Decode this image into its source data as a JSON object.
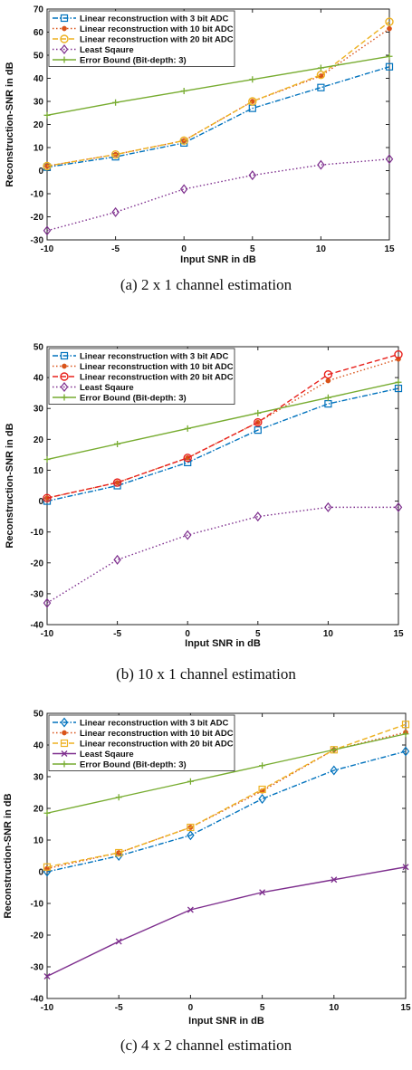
{
  "chart_data": [
    {
      "type": "line",
      "caption": "(a) 2 x 1 channel estimation",
      "xlabel": "Input SNR in dB",
      "ylabel": "Reconstruction-SNR in dB",
      "xlim": [
        -10,
        15
      ],
      "ylim": [
        -30,
        70
      ],
      "xticks": [
        -10,
        -5,
        0,
        5,
        10,
        15
      ],
      "yticks": [
        -30,
        -20,
        -10,
        0,
        10,
        20,
        30,
        40,
        50,
        60,
        70
      ],
      "legend_position": "top-left",
      "x": [
        -10,
        -5,
        0,
        5,
        10,
        15
      ],
      "series": [
        {
          "name": "Linear reconstruction with 3 bit ADC",
          "values": [
            1.5,
            6,
            12,
            27,
            36,
            45
          ],
          "color": "#0072BD",
          "dash": "dashdot",
          "marker": "square"
        },
        {
          "name": "Linear reconstruction with 10 bit ADC",
          "values": [
            2,
            7,
            13,
            30,
            41,
            61.5
          ],
          "color": "#D95319",
          "dash": "dotted",
          "marker": "dot"
        },
        {
          "name": "Linear reconstruction with 20 bit ADC",
          "values": [
            2,
            7,
            13,
            30,
            41.5,
            64.5
          ],
          "color": "#EDB120",
          "dash": "dashed",
          "marker": "circle"
        },
        {
          "name": "Least Sqaure",
          "values": [
            -26,
            -18,
            -8,
            -2,
            2.5,
            5
          ],
          "color": "#7E2F8E",
          "dash": "dotted",
          "marker": "diamond"
        },
        {
          "name": "Error Bound (Bit-depth: 3)",
          "values": [
            24,
            29.5,
            34.5,
            39.5,
            44.5,
            49.5
          ],
          "color": "#77AC30",
          "dash": "solid",
          "marker": "plus"
        }
      ]
    },
    {
      "type": "line",
      "caption": "(b) 10 x 1 channel estimation",
      "xlabel": "Input SNR in dB",
      "ylabel": "Reconstruction-SNR in dB",
      "xlim": [
        -10,
        15
      ],
      "ylim": [
        -40,
        50
      ],
      "xticks": [
        -10,
        -5,
        0,
        5,
        10,
        15
      ],
      "yticks": [
        -40,
        -30,
        -20,
        -10,
        0,
        10,
        20,
        30,
        40,
        50
      ],
      "legend_position": "top-left",
      "x": [
        -10,
        -5,
        0,
        5,
        10,
        15
      ],
      "series": [
        {
          "name": "Linear reconstruction with 3 bit ADC",
          "values": [
            0,
            5,
            12.5,
            23,
            31.5,
            36.5
          ],
          "color": "#0072BD",
          "dash": "dashdot",
          "marker": "square"
        },
        {
          "name": "Linear reconstruction with 10 bit ADC",
          "values": [
            1,
            6,
            14,
            25.5,
            39,
            46
          ],
          "color": "#D95319",
          "dash": "dotted",
          "marker": "dot"
        },
        {
          "name": "Linear reconstruction with 20 bit ADC",
          "values": [
            1,
            6,
            14,
            25.5,
            41,
            47.5
          ],
          "color": "#E8211C",
          "dash": "dashed",
          "marker": "circle"
        },
        {
          "name": "Least Sqaure",
          "values": [
            -33,
            -19,
            -11,
            -5,
            -2,
            -2
          ],
          "color": "#7E2F8E",
          "dash": "dotted",
          "marker": "diamond"
        },
        {
          "name": "Error Bound (Bit-depth: 3)",
          "values": [
            13.5,
            18.5,
            23.5,
            28.5,
            33.5,
            38.5
          ],
          "color": "#77AC30",
          "dash": "solid",
          "marker": "plus"
        }
      ]
    },
    {
      "type": "line",
      "caption": "(c) 4 x 2 channel estimation",
      "xlabel": "Input SNR in dB",
      "ylabel": "Reconstruction-SNR in dB",
      "xlim": [
        -10,
        15
      ],
      "ylim": [
        -40,
        50
      ],
      "xticks": [
        -10,
        -5,
        0,
        5,
        10,
        15
      ],
      "yticks": [
        -40,
        -30,
        -20,
        -10,
        0,
        10,
        20,
        30,
        40,
        50
      ],
      "legend_position": "top-left",
      "x": [
        -10,
        -5,
        0,
        5,
        10,
        15
      ],
      "series": [
        {
          "name": "Linear reconstruction with 3 bit ADC",
          "values": [
            0,
            5,
            11.5,
            23,
            32,
            38
          ],
          "color": "#0072BD",
          "dash": "dashdot",
          "marker": "diamond"
        },
        {
          "name": "Linear reconstruction with 10 bit ADC",
          "values": [
            1,
            6,
            14,
            25.5,
            38.5,
            44
          ],
          "color": "#D95319",
          "dash": "dotted",
          "marker": "dot"
        },
        {
          "name": "Linear reconstruction with 20 bit ADC",
          "values": [
            1.5,
            6,
            14,
            26,
            38.5,
            46.5
          ],
          "color": "#EDB120",
          "dash": "dashed",
          "marker": "square"
        },
        {
          "name": "Least Sqaure",
          "values": [
            -33,
            -22,
            -12,
            -6.5,
            -2.5,
            1.5
          ],
          "color": "#7E2F8E",
          "dash": "solid",
          "marker": "cross"
        },
        {
          "name": "Error Bound (Bit-depth: 3)",
          "values": [
            18.5,
            23.5,
            28.5,
            33.5,
            38.5,
            43.5
          ],
          "color": "#77AC30",
          "dash": "solid",
          "marker": "plus"
        }
      ]
    }
  ]
}
